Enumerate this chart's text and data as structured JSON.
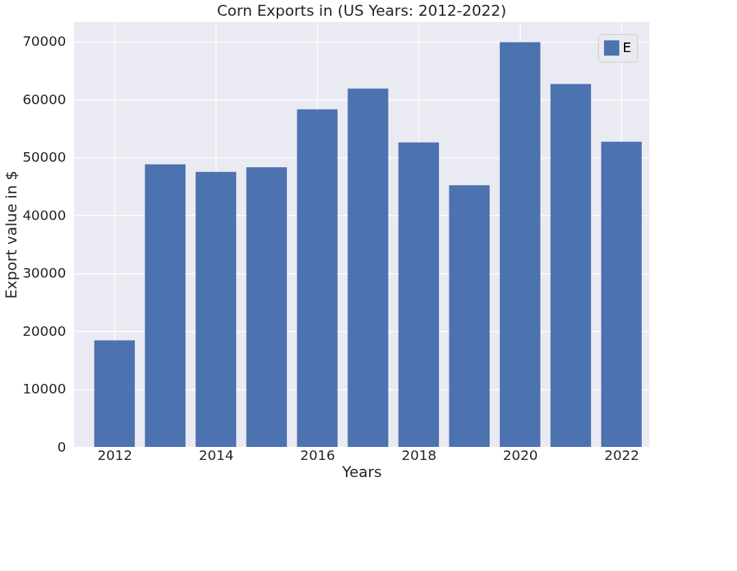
{
  "chart_data": {
    "type": "bar",
    "title": "Corn Exports in (US Years: 2012-2022)",
    "xlabel": "Years",
    "ylabel": "Export value in $",
    "x": [
      2012,
      2013,
      2014,
      2015,
      2016,
      2017,
      2018,
      2019,
      2020,
      2021,
      2022
    ],
    "series": [
      {
        "name": "E",
        "color": "#4c72b0",
        "values": [
          18400,
          48800,
          47500,
          48300,
          58300,
          61900,
          52600,
          45200,
          69900,
          62700,
          52700
        ]
      }
    ],
    "xlim": [
      2011.2,
      2022.55
    ],
    "xticks": [
      2012,
      2014,
      2016,
      2018,
      2020,
      2022
    ],
    "ylim": [
      0,
      73400
    ],
    "yticks": [
      0,
      10000,
      20000,
      30000,
      40000,
      50000,
      60000,
      70000
    ],
    "grid": true,
    "legend": "top right"
  }
}
